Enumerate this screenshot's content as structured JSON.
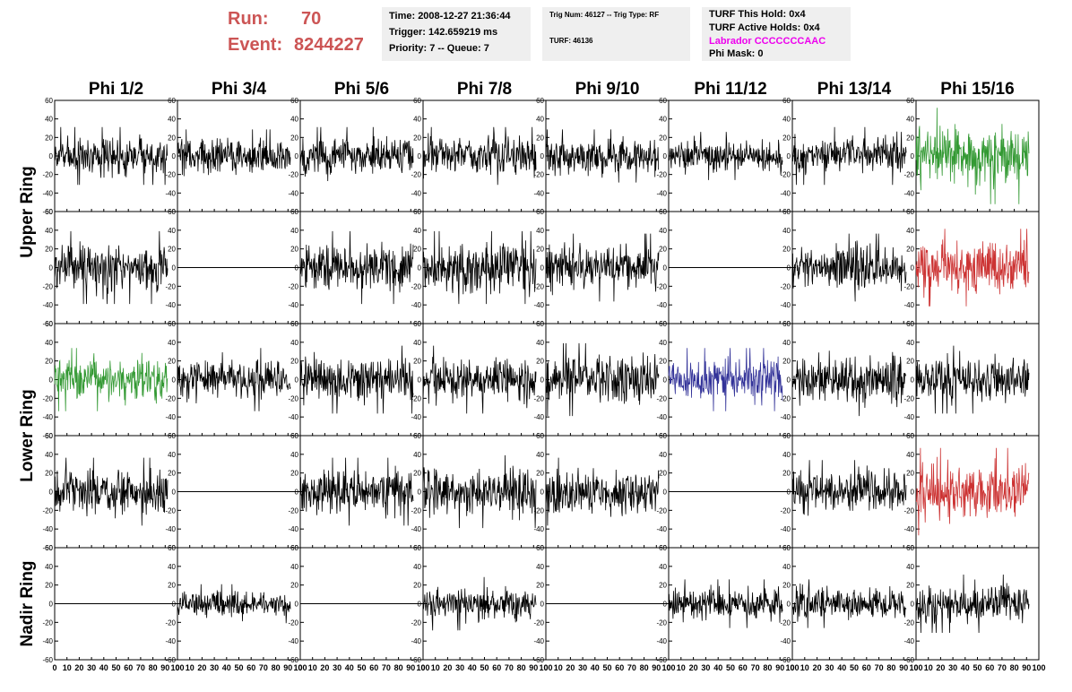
{
  "header": {
    "run_label": "Run:",
    "run_value": "70",
    "event_label": "Event:",
    "event_value": "8244227",
    "time": "Time: 2008-12-27 21:36:44",
    "trigger": "Trigger: 142.659219 ms",
    "priority_queue": "Priority: 7 -- Queue: 7",
    "trig_num_type": "Trig Num: 46127 -- Trig Type: RF",
    "turf_count": "TURF: 46136",
    "turf_this_hold": "TURF This Hold: 0x4",
    "turf_active_holds": "TURF Active Holds: 0x4",
    "labrador": "Labrador CCCCCCCAAC",
    "phi_mask": "Phi Mask: 0"
  },
  "colors": {
    "run_text": "#cc5555",
    "labrador_text": "#ee00ee",
    "panel_bg": "#efefef",
    "trace_black": "#000000",
    "trace_green": "#339933",
    "trace_red": "#cc3333",
    "trace_blue": "#333399"
  },
  "chart_data": {
    "type": "line",
    "columns": [
      "Phi 1/2",
      "Phi 3/4",
      "Phi 5/6",
      "Phi 7/8",
      "Phi 9/10",
      "Phi 11/12",
      "Phi 13/14",
      "Phi 15/16"
    ],
    "rows": [
      "Upper Ring",
      "Upper Ring",
      "Lower Ring",
      "Lower Ring",
      "Nadir Ring"
    ],
    "row_labels": [
      {
        "label": "Upper Ring",
        "rows": [
          0,
          1
        ]
      },
      {
        "label": "Lower Ring",
        "rows": [
          2,
          3
        ]
      },
      {
        "label": "Nadir Ring",
        "rows": [
          4
        ]
      }
    ],
    "ylim": [
      -60,
      60
    ],
    "yticks": [
      -60,
      -40,
      -20,
      0,
      20,
      40,
      60
    ],
    "ytick_labels": [
      "-60",
      "-40",
      "-20",
      "0",
      "20",
      "40",
      "60"
    ],
    "xlim": [
      0,
      100
    ],
    "xticks": [
      0,
      10,
      20,
      30,
      40,
      50,
      60,
      70,
      80,
      90,
      100
    ],
    "xtick_labels": [
      "0",
      "10",
      "20",
      "30",
      "40",
      "50",
      "60",
      "70",
      "80",
      "90",
      "100"
    ],
    "grid": false,
    "samples_per_trace": 260,
    "panels": [
      {
        "row": 0,
        "col": 0,
        "kind": "noise",
        "amplitude": 12,
        "color": "black"
      },
      {
        "row": 0,
        "col": 1,
        "kind": "noise",
        "amplitude": 11,
        "color": "black"
      },
      {
        "row": 0,
        "col": 2,
        "kind": "noise",
        "amplitude": 12,
        "color": "black"
      },
      {
        "row": 0,
        "col": 3,
        "kind": "noise",
        "amplitude": 12,
        "color": "black"
      },
      {
        "row": 0,
        "col": 4,
        "kind": "noise",
        "amplitude": 11,
        "color": "black"
      },
      {
        "row": 0,
        "col": 5,
        "kind": "noise",
        "amplitude": 10,
        "color": "black"
      },
      {
        "row": 0,
        "col": 6,
        "kind": "noise",
        "amplitude": 12,
        "color": "black"
      },
      {
        "row": 0,
        "col": 7,
        "kind": "noise",
        "amplitude": 20,
        "color": "green"
      },
      {
        "row": 1,
        "col": 0,
        "kind": "noise",
        "amplitude": 15,
        "color": "black"
      },
      {
        "row": 1,
        "col": 1,
        "kind": "flat",
        "color": "black"
      },
      {
        "row": 1,
        "col": 2,
        "kind": "noise",
        "amplitude": 15,
        "color": "black"
      },
      {
        "row": 1,
        "col": 3,
        "kind": "noise",
        "amplitude": 15,
        "color": "black"
      },
      {
        "row": 1,
        "col": 4,
        "kind": "noise",
        "amplitude": 14,
        "color": "black"
      },
      {
        "row": 1,
        "col": 5,
        "kind": "flat",
        "color": "black"
      },
      {
        "row": 1,
        "col": 6,
        "kind": "noise",
        "amplitude": 14,
        "color": "black"
      },
      {
        "row": 1,
        "col": 7,
        "kind": "noise",
        "amplitude": 16,
        "color": "red"
      },
      {
        "row": 2,
        "col": 0,
        "kind": "noise",
        "amplitude": 13,
        "color": "green"
      },
      {
        "row": 2,
        "col": 1,
        "kind": "noise",
        "amplitude": 13,
        "color": "black"
      },
      {
        "row": 2,
        "col": 2,
        "kind": "noise",
        "amplitude": 14,
        "color": "black"
      },
      {
        "row": 2,
        "col": 3,
        "kind": "noise",
        "amplitude": 14,
        "color": "black"
      },
      {
        "row": 2,
        "col": 4,
        "kind": "noise",
        "amplitude": 15,
        "color": "black"
      },
      {
        "row": 2,
        "col": 5,
        "kind": "noise",
        "amplitude": 13,
        "color": "blue"
      },
      {
        "row": 2,
        "col": 6,
        "kind": "noise",
        "amplitude": 15,
        "color": "black"
      },
      {
        "row": 2,
        "col": 7,
        "kind": "noise",
        "amplitude": 14,
        "color": "black"
      },
      {
        "row": 3,
        "col": 0,
        "kind": "noise",
        "amplitude": 14,
        "color": "black"
      },
      {
        "row": 3,
        "col": 1,
        "kind": "flat",
        "color": "black"
      },
      {
        "row": 3,
        "col": 2,
        "kind": "noise",
        "amplitude": 14,
        "color": "black"
      },
      {
        "row": 3,
        "col": 3,
        "kind": "noise",
        "amplitude": 15,
        "color": "black"
      },
      {
        "row": 3,
        "col": 4,
        "kind": "noise",
        "amplitude": 14,
        "color": "black"
      },
      {
        "row": 3,
        "col": 5,
        "kind": "flat",
        "color": "black"
      },
      {
        "row": 3,
        "col": 6,
        "kind": "noise",
        "amplitude": 13,
        "color": "black"
      },
      {
        "row": 3,
        "col": 7,
        "kind": "noise",
        "amplitude": 18,
        "color": "red"
      },
      {
        "row": 4,
        "col": 0,
        "kind": "flat",
        "color": "black"
      },
      {
        "row": 4,
        "col": 1,
        "kind": "noise",
        "amplitude": 8,
        "color": "black"
      },
      {
        "row": 4,
        "col": 2,
        "kind": "flat",
        "color": "black"
      },
      {
        "row": 4,
        "col": 3,
        "kind": "noise",
        "amplitude": 11,
        "color": "black"
      },
      {
        "row": 4,
        "col": 4,
        "kind": "flat",
        "color": "black"
      },
      {
        "row": 4,
        "col": 5,
        "kind": "noise",
        "amplitude": 10,
        "color": "black"
      },
      {
        "row": 4,
        "col": 6,
        "kind": "noise",
        "amplitude": 10,
        "color": "black"
      },
      {
        "row": 4,
        "col": 7,
        "kind": "noise",
        "amplitude": 12,
        "color": "black"
      }
    ]
  }
}
